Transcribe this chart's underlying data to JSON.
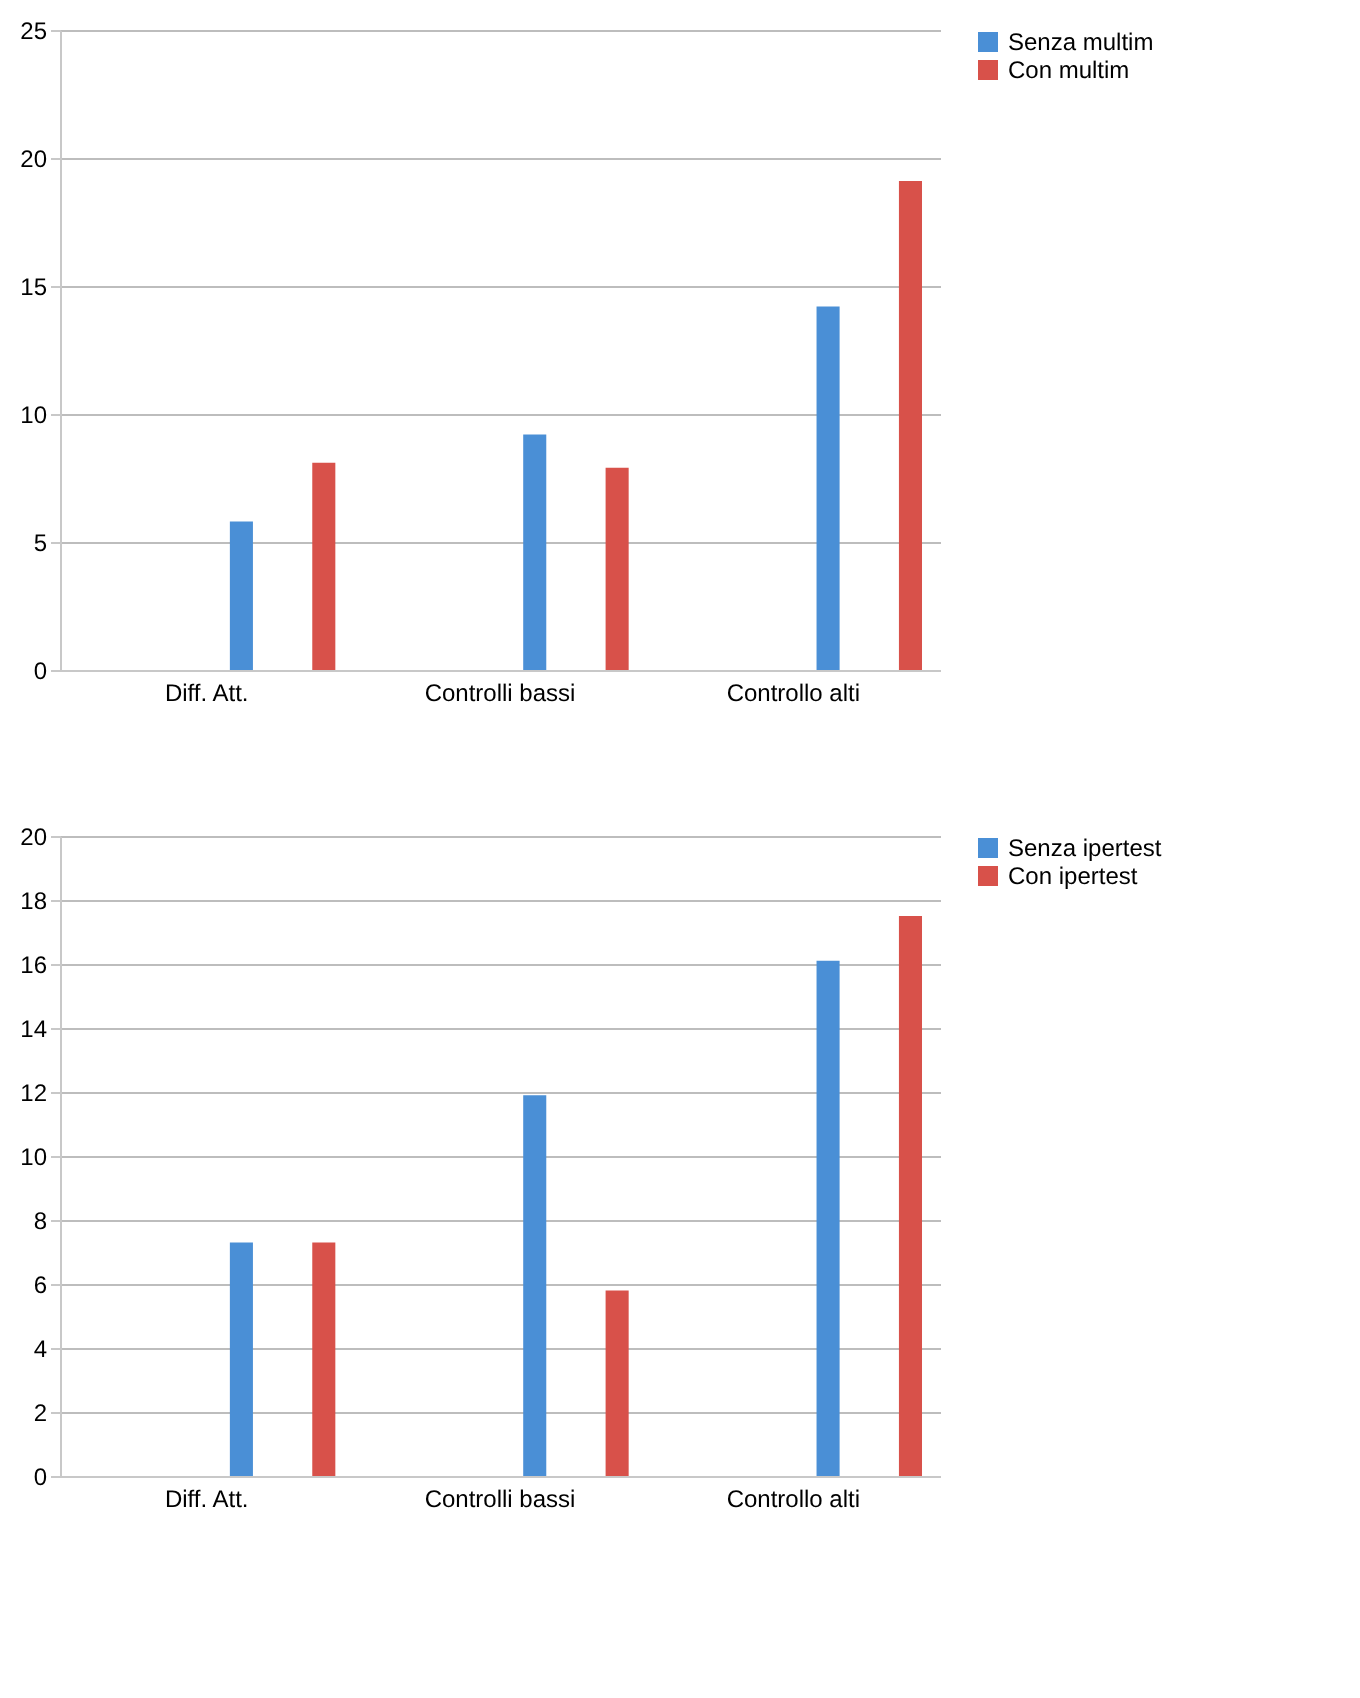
{
  "chart_data": [
    {
      "type": "bar",
      "categories": [
        "Diff. Att.",
        "Controlli bassi",
        "Controllo alti"
      ],
      "series": [
        {
          "name": "Senza multim",
          "color": "#4a8fd6",
          "values": [
            5.8,
            9.2,
            14.2
          ]
        },
        {
          "name": "Con multim",
          "color": "#d8514a",
          "values": [
            8.1,
            7.9,
            19.1
          ]
        }
      ],
      "ylim": [
        0,
        25
      ],
      "yticks": [
        0,
        5,
        10,
        15,
        20,
        25
      ],
      "grid": "y",
      "legend": "right"
    },
    {
      "type": "bar",
      "categories": [
        "Diff. Att.",
        "Controlli bassi",
        "Controllo alti"
      ],
      "series": [
        {
          "name": "Senza ipertest",
          "color": "#4a8fd6",
          "values": [
            7.3,
            11.9,
            16.1
          ]
        },
        {
          "name": "Con ipertest",
          "color": "#d8514a",
          "values": [
            7.3,
            5.8,
            17.5
          ]
        }
      ],
      "ylim": [
        0,
        20
      ],
      "yticks": [
        0,
        2,
        4,
        6,
        8,
        10,
        12,
        14,
        16,
        18,
        20
      ],
      "grid": "y",
      "legend": "right"
    }
  ]
}
